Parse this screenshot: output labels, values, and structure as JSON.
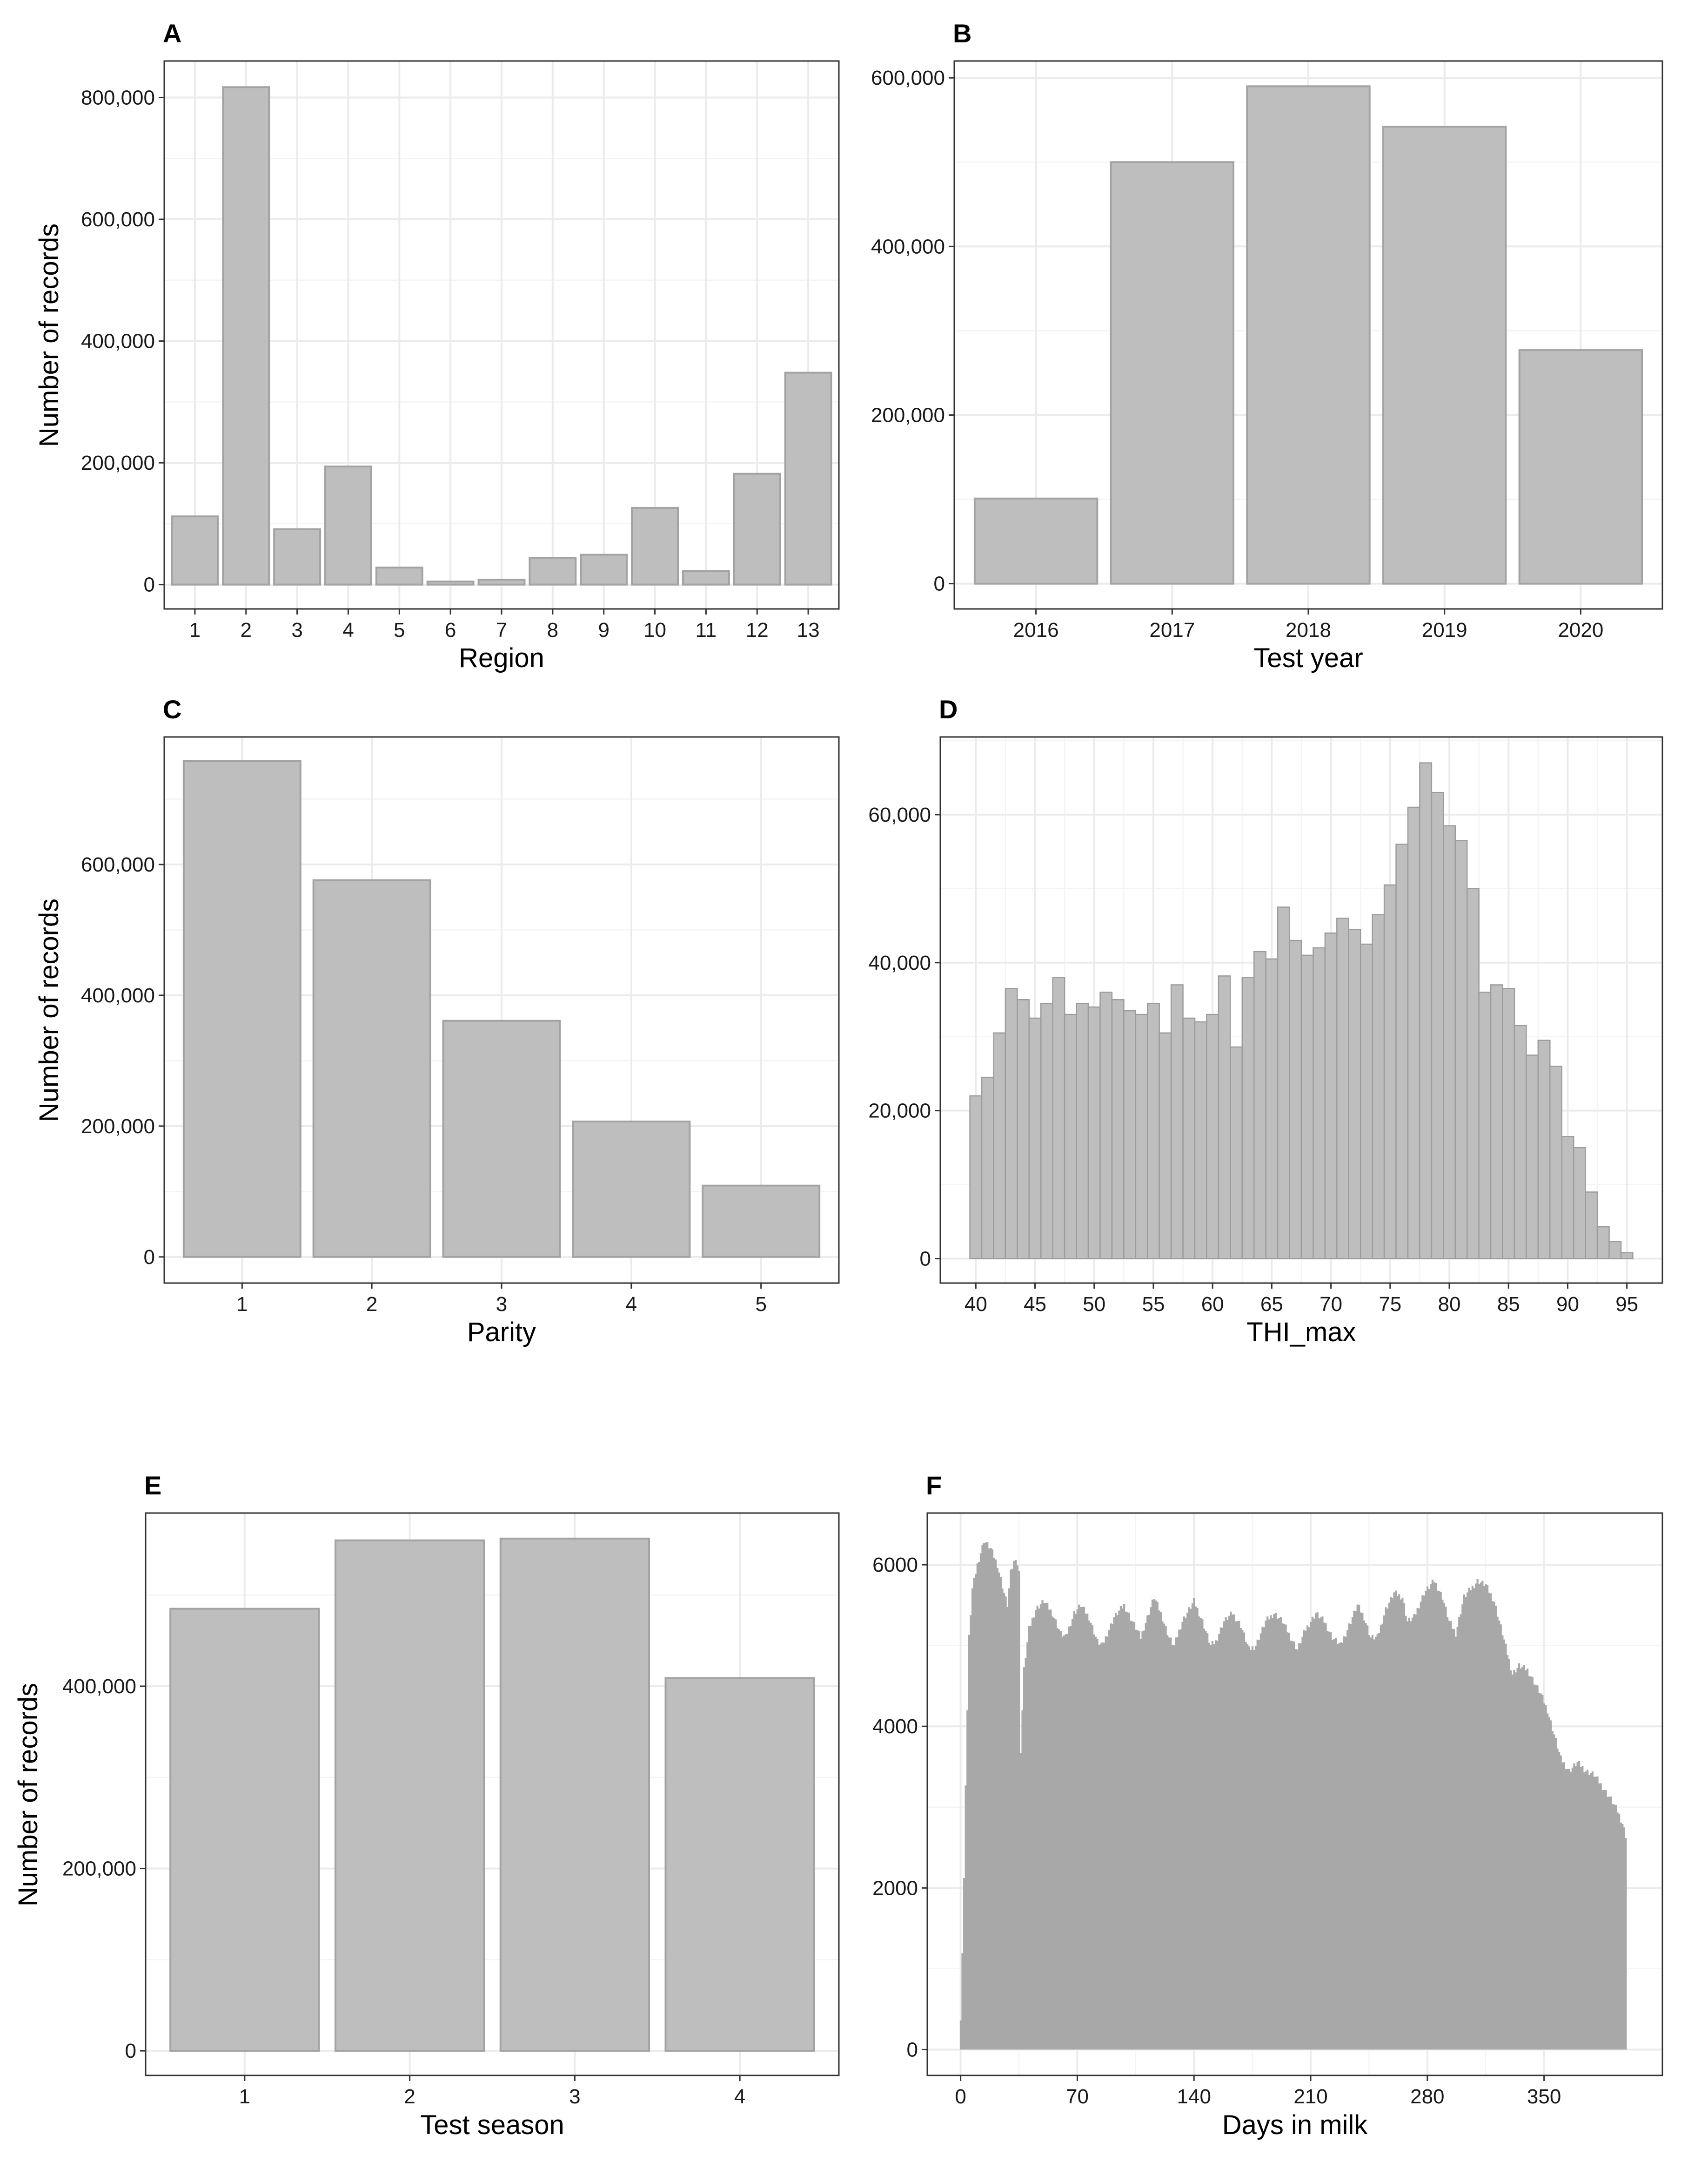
{
  "chart_data": [
    {
      "id": "A",
      "type": "bar",
      "panel_label": "A",
      "title": "",
      "xlabel": "Region",
      "ylabel": "Number of records",
      "categories": [
        "1",
        "2",
        "3",
        "4",
        "5",
        "6",
        "7",
        "8",
        "9",
        "10",
        "11",
        "12",
        "13"
      ],
      "values": [
        112000,
        817000,
        91000,
        194000,
        28000,
        5000,
        8000,
        44000,
        49000,
        126000,
        22000,
        182000,
        348000
      ],
      "ylim": [
        -40000,
        860000
      ],
      "yticks": [
        0,
        200000,
        400000,
        600000,
        800000
      ],
      "ytick_labels": [
        "0",
        "200,000",
        "400,000",
        "600,000",
        "800,000"
      ],
      "grid": true
    },
    {
      "id": "B",
      "type": "bar",
      "panel_label": "B",
      "title": "",
      "xlabel": "Test year",
      "ylabel": "",
      "categories": [
        "2016",
        "2017",
        "2018",
        "2019",
        "2020"
      ],
      "values": [
        101000,
        500000,
        590000,
        542000,
        277000
      ],
      "ylim": [
        -30000,
        620000
      ],
      "yticks": [
        0,
        200000,
        400000,
        600000
      ],
      "ytick_labels": [
        "0",
        "200,000",
        "400,000",
        "600,000"
      ],
      "grid": true
    },
    {
      "id": "C",
      "type": "bar",
      "panel_label": "C",
      "title": "",
      "xlabel": "Parity",
      "ylabel": "Number of records",
      "categories": [
        "1",
        "2",
        "3",
        "4",
        "5"
      ],
      "values": [
        758000,
        576000,
        361000,
        207000,
        109000
      ],
      "ylim": [
        -40000,
        795000
      ],
      "yticks": [
        0,
        200000,
        400000,
        600000
      ],
      "ytick_labels": [
        "0",
        "200,000",
        "400,000",
        "600,000"
      ],
      "grid": true
    },
    {
      "id": "D",
      "type": "bar",
      "panel_label": "D",
      "title": "",
      "xlabel": "THI_max",
      "ylabel": "",
      "x_start": 40,
      "x_step": 1,
      "values": [
        22000,
        24500,
        30500,
        36500,
        35000,
        32500,
        34500,
        38000,
        33000,
        34500,
        34000,
        36000,
        35000,
        33500,
        33000,
        34500,
        30500,
        37000,
        32500,
        32000,
        33000,
        38200,
        28600,
        38000,
        41500,
        40500,
        47500,
        43000,
        41000,
        42000,
        44000,
        46000,
        44500,
        42500,
        46500,
        50500,
        56000,
        61000,
        67000,
        63000,
        58500,
        56500,
        50000,
        36000,
        37000,
        36500,
        31500,
        27500,
        29500,
        26000,
        16500,
        15000,
        9000,
        4300,
        2300,
        800
      ],
      "xlim": [
        37,
        98
      ],
      "xticks": [
        40,
        45,
        50,
        55,
        60,
        65,
        70,
        75,
        80,
        85,
        90,
        95
      ],
      "xtick_labels": [
        "40",
        "45",
        "50",
        "55",
        "60",
        "65",
        "70",
        "75",
        "80",
        "85",
        "90",
        "95"
      ],
      "ylim": [
        -3300,
        70500
      ],
      "yticks": [
        0,
        20000,
        40000,
        60000
      ],
      "ytick_labels": [
        "0",
        "20,000",
        "40,000",
        "60,000"
      ],
      "grid": true
    },
    {
      "id": "E",
      "type": "bar",
      "panel_label": "E",
      "title": "",
      "xlabel": "Test season",
      "ylabel": "Number of records",
      "categories": [
        "1",
        "2",
        "3",
        "4"
      ],
      "values": [
        485000,
        560000,
        562000,
        409000
      ],
      "ylim": [
        -27000,
        590000
      ],
      "yticks": [
        0,
        200000,
        400000
      ],
      "ytick_labels": [
        "0",
        "200,000",
        "400,000"
      ],
      "grid": true
    },
    {
      "id": "F",
      "type": "bar",
      "panel_label": "F",
      "title": "",
      "xlabel": "Days in milk",
      "ylabel": "",
      "x_range": [
        0,
        400
      ],
      "x_step": 1,
      "profile_knots": [
        [
          0,
          400
        ],
        [
          1,
          1200
        ],
        [
          2,
          2100
        ],
        [
          3,
          3300
        ],
        [
          4,
          4200
        ],
        [
          5,
          5100
        ],
        [
          7,
          5700
        ],
        [
          10,
          6000
        ],
        [
          14,
          6300
        ],
        [
          18,
          6200
        ],
        [
          22,
          6000
        ],
        [
          26,
          5650
        ],
        [
          28,
          5500
        ],
        [
          30,
          5900
        ],
        [
          33,
          6100
        ],
        [
          35,
          5900
        ],
        [
          36,
          3700
        ],
        [
          38,
          4700
        ],
        [
          41,
          5200
        ],
        [
          45,
          5450
        ],
        [
          50,
          5550
        ],
        [
          55,
          5400
        ],
        [
          60,
          5150
        ],
        [
          63,
          5100
        ],
        [
          68,
          5400
        ],
        [
          72,
          5500
        ],
        [
          77,
          5350
        ],
        [
          82,
          5050
        ],
        [
          85,
          5000
        ],
        [
          92,
          5350
        ],
        [
          98,
          5500
        ],
        [
          103,
          5300
        ],
        [
          108,
          5100
        ],
        [
          112,
          5350
        ],
        [
          116,
          5600
        ],
        [
          120,
          5400
        ],
        [
          125,
          5100
        ],
        [
          128,
          5000
        ],
        [
          133,
          5300
        ],
        [
          140,
          5550
        ],
        [
          145,
          5300
        ],
        [
          150,
          5000
        ],
        [
          153,
          5050
        ],
        [
          158,
          5300
        ],
        [
          163,
          5400
        ],
        [
          168,
          5250
        ],
        [
          173,
          4950
        ],
        [
          177,
          5000
        ],
        [
          183,
          5300
        ],
        [
          188,
          5400
        ],
        [
          193,
          5300
        ],
        [
          198,
          5100
        ],
        [
          202,
          4950
        ],
        [
          207,
          5200
        ],
        [
          213,
          5400
        ],
        [
          218,
          5300
        ],
        [
          223,
          5100
        ],
        [
          228,
          5000
        ],
        [
          233,
          5250
        ],
        [
          238,
          5500
        ],
        [
          242,
          5350
        ],
        [
          246,
          5100
        ],
        [
          250,
          5100
        ],
        [
          255,
          5450
        ],
        [
          260,
          5650
        ],
        [
          265,
          5600
        ],
        [
          268,
          5300
        ],
        [
          272,
          5350
        ],
        [
          278,
          5650
        ],
        [
          284,
          5800
        ],
        [
          289,
          5600
        ],
        [
          293,
          5300
        ],
        [
          297,
          5150
        ],
        [
          302,
          5600
        ],
        [
          310,
          5800
        ],
        [
          315,
          5750
        ],
        [
          320,
          5550
        ],
        [
          325,
          5150
        ],
        [
          328,
          4900
        ],
        [
          331,
          4650
        ],
        [
          335,
          4750
        ],
        [
          340,
          4700
        ],
        [
          344,
          4550
        ],
        [
          348,
          4400
        ],
        [
          352,
          4200
        ],
        [
          356,
          3900
        ],
        [
          360,
          3600
        ],
        [
          365,
          3450
        ],
        [
          370,
          3550
        ],
        [
          375,
          3450
        ],
        [
          380,
          3400
        ],
        [
          385,
          3250
        ],
        [
          390,
          3100
        ],
        [
          394,
          2950
        ],
        [
          397,
          2800
        ],
        [
          399,
          2650
        ]
      ],
      "xlim": [
        -20,
        421
      ],
      "xticks": [
        0,
        70,
        140,
        210,
        280,
        350
      ],
      "xtick_labels": [
        "0",
        "70",
        "140",
        "210",
        "280",
        "350"
      ],
      "ylim": [
        -320,
        6640
      ],
      "yticks": [
        0,
        2000,
        4000,
        6000
      ],
      "ytick_labels": [
        "0",
        "2000",
        "4000",
        "6000"
      ],
      "grid": true
    }
  ]
}
